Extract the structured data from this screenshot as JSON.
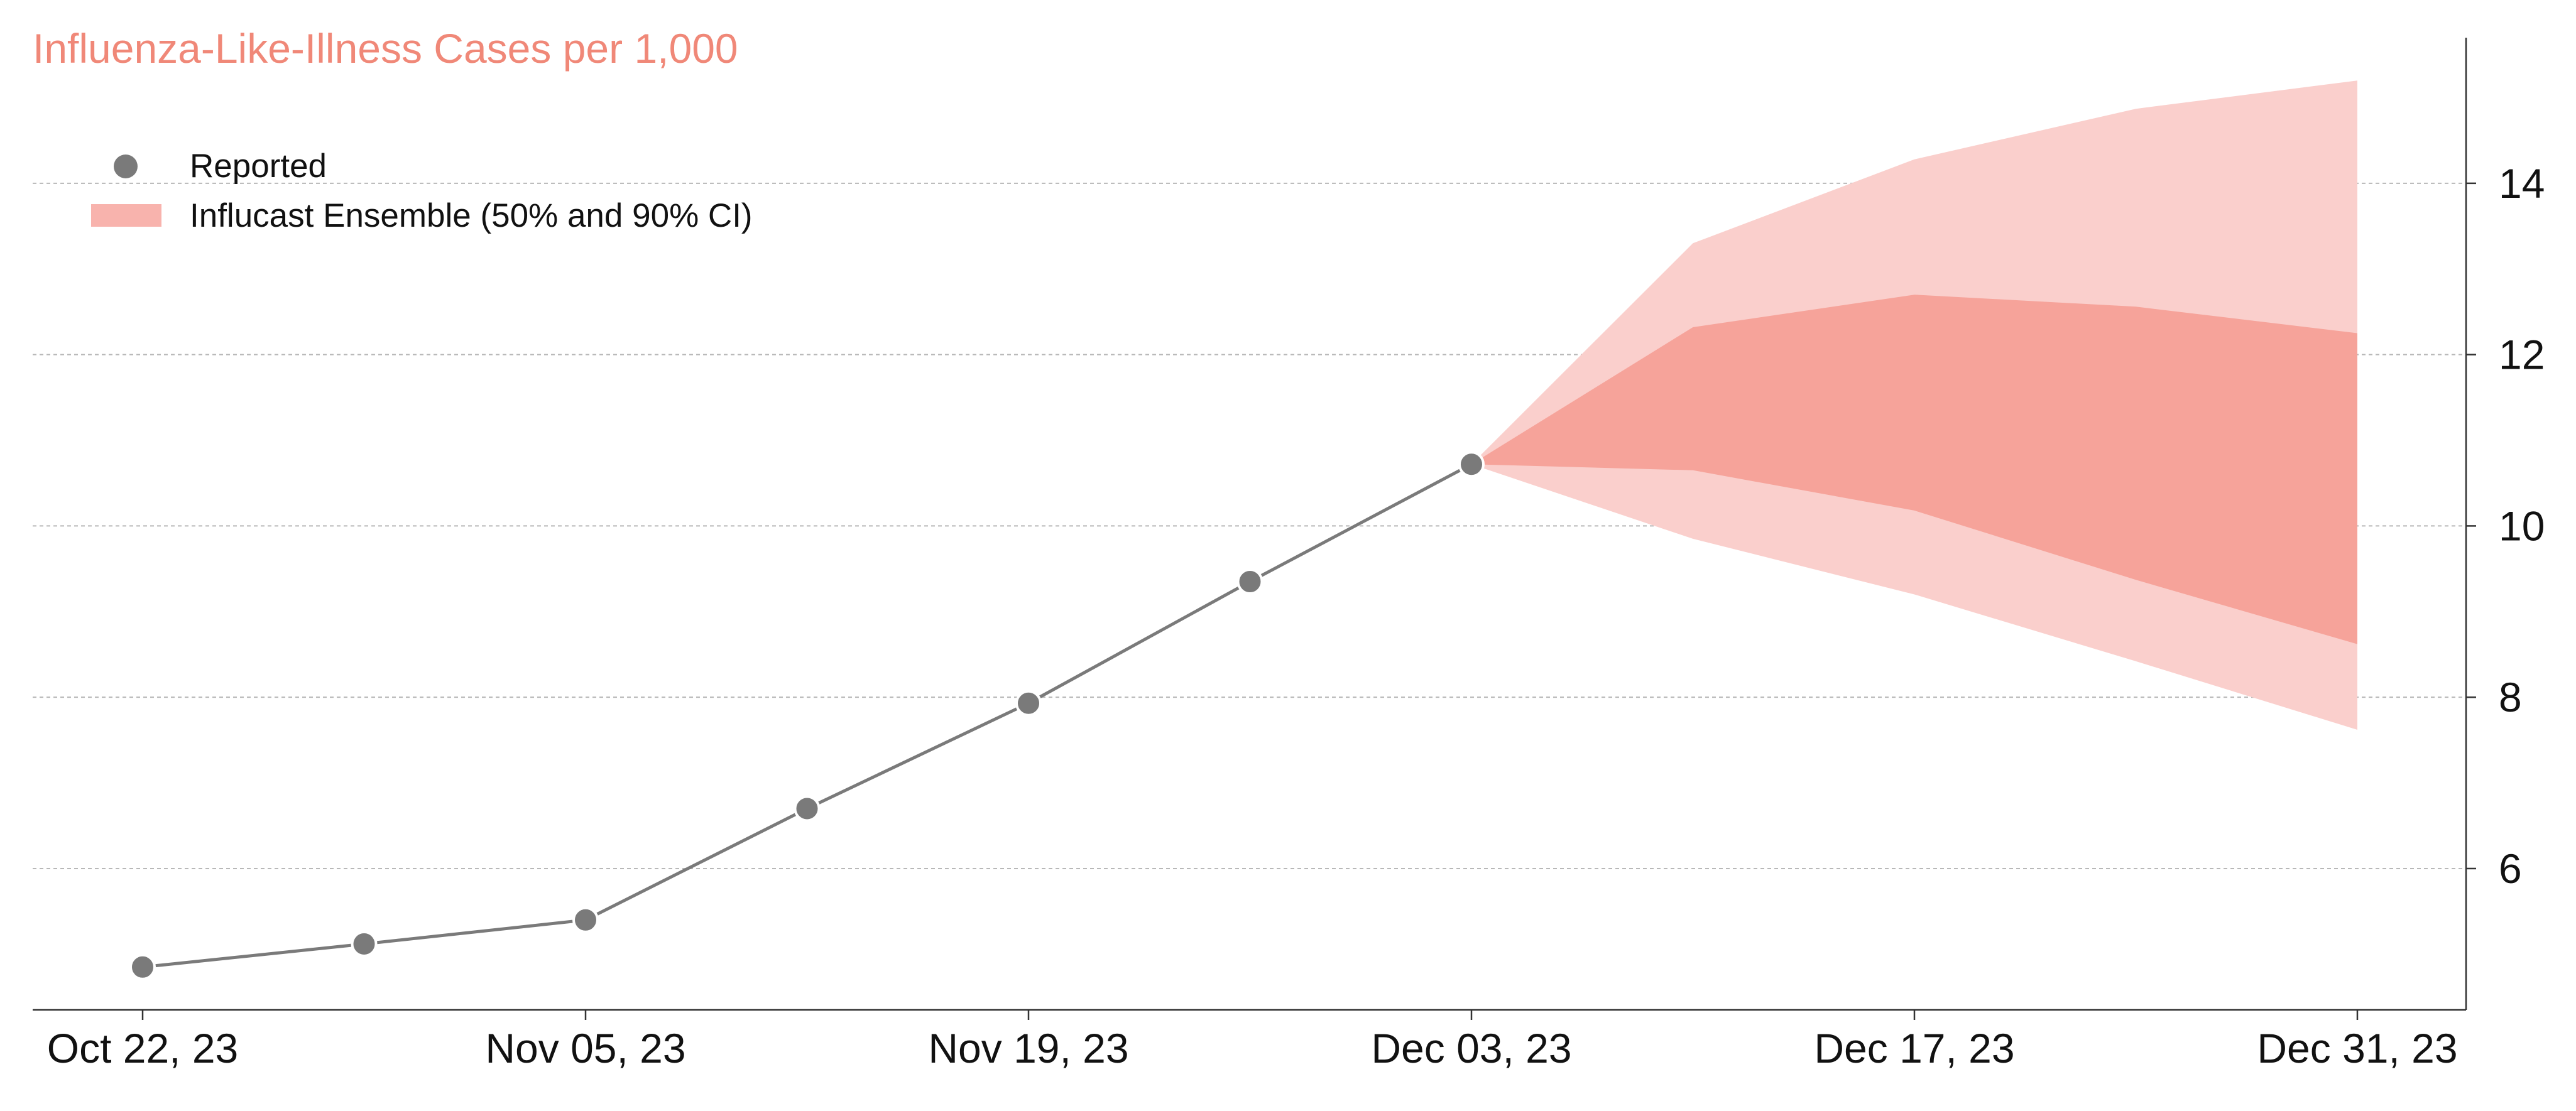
{
  "chart_data": {
    "type": "line",
    "title": "Influenza-Like-Illness Cases per 1,000",
    "xlabel": "",
    "ylabel": "",
    "x_ticks": [
      "Oct 22, 23",
      "Nov 05, 23",
      "Nov 19, 23",
      "Dec 03, 23",
      "Dec 17, 23",
      "Dec 31, 23"
    ],
    "y_ticks": [
      6,
      8,
      10,
      12,
      14
    ],
    "x_range": [
      "2023-10-22",
      "2023-12-31"
    ],
    "ylim": [
      4.35,
      15.7
    ],
    "grid": "horizontal dashed",
    "y_axis_position": "right",
    "legend_position": "top-left",
    "legend": [
      {
        "label": "Reported",
        "kind": "marker"
      },
      {
        "label": "Influcast Ensemble (50% and 90% CI)",
        "kind": "band"
      }
    ],
    "colors": {
      "title": "#f08878",
      "reported": "#7a7a7a",
      "band_50": "#f6a39a",
      "band_90": "#facfcc",
      "grid": "#b8b8b8"
    },
    "reported": [
      {
        "x": "2023-10-22",
        "y": 4.85
      },
      {
        "x": "2023-10-29",
        "y": 5.12
      },
      {
        "x": "2023-11-05",
        "y": 5.4
      },
      {
        "x": "2023-11-12",
        "y": 6.7
      },
      {
        "x": "2023-11-19",
        "y": 7.93
      },
      {
        "x": "2023-11-26",
        "y": 9.35
      },
      {
        "x": "2023-12-03",
        "y": 10.72
      }
    ],
    "forecast": [
      {
        "x": "2023-12-03",
        "lo90": 10.72,
        "lo50": 10.72,
        "hi50": 10.72,
        "hi90": 10.72
      },
      {
        "x": "2023-12-10",
        "lo90": 9.85,
        "lo50": 10.65,
        "hi50": 12.32,
        "hi90": 13.3
      },
      {
        "x": "2023-12-17",
        "lo90": 9.2,
        "lo50": 10.18,
        "hi50": 12.7,
        "hi90": 14.28
      },
      {
        "x": "2023-12-24",
        "lo90": 8.42,
        "lo50": 9.37,
        "hi50": 12.56,
        "hi90": 14.87
      },
      {
        "x": "2023-12-31",
        "lo90": 7.62,
        "lo50": 8.62,
        "hi50": 12.25,
        "hi90": 15.2
      }
    ]
  }
}
